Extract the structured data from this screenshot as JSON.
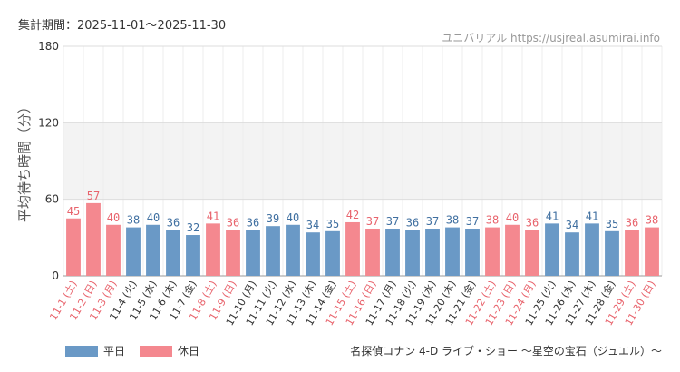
{
  "header": {
    "period": "集計期間：2025-11-01～2025-11-30"
  },
  "watermark": "ユニバリアル https://usjreal.asumirai.info",
  "chart_data": {
    "type": "bar",
    "title": "名探偵コナン 4-D ライブ・ショー ～星空の宝石（ジュエル）～",
    "ylabel": "平均待ち時間（分）",
    "xlabel": "",
    "ylim": [
      0,
      180
    ],
    "yticks": [
      0,
      60,
      120,
      180
    ],
    "band": [
      60,
      120
    ],
    "categories": [
      "11-1 (土)",
      "11-2 (日)",
      "11-3 (月)",
      "11-4 (火)",
      "11-5 (水)",
      "11-6 (木)",
      "11-7 (金)",
      "11-8 (土)",
      "11-9 (日)",
      "11-10 (月)",
      "11-11 (火)",
      "11-12 (水)",
      "11-13 (木)",
      "11-14 (金)",
      "11-15 (土)",
      "11-16 (日)",
      "11-17 (月)",
      "11-18 (火)",
      "11-19 (水)",
      "11-20 (木)",
      "11-21 (金)",
      "11-22 (土)",
      "11-23 (日)",
      "11-24 (月)",
      "11-25 (火)",
      "11-26 (水)",
      "11-27 (木)",
      "11-28 (金)",
      "11-29 (土)",
      "11-30 (日)"
    ],
    "values": [
      45,
      57,
      40,
      38,
      40,
      36,
      32,
      41,
      36,
      36,
      39,
      40,
      34,
      35,
      42,
      37,
      37,
      36,
      37,
      38,
      37,
      38,
      40,
      36,
      41,
      34,
      41,
      35,
      36,
      38
    ],
    "day_type": [
      "holiday",
      "holiday",
      "holiday",
      "weekday",
      "weekday",
      "weekday",
      "weekday",
      "holiday",
      "holiday",
      "weekday",
      "weekday",
      "weekday",
      "weekday",
      "weekday",
      "holiday",
      "holiday",
      "weekday",
      "weekday",
      "weekday",
      "weekday",
      "weekday",
      "holiday",
      "holiday",
      "holiday",
      "weekday",
      "weekday",
      "weekday",
      "weekday",
      "holiday",
      "holiday"
    ],
    "legend": [
      {
        "key": "weekday",
        "label": "平日",
        "color": "#6a99c6"
      },
      {
        "key": "holiday",
        "label": "休日",
        "color": "#f4888f"
      }
    ],
    "label_colors": {
      "weekday": "#3f6fa0",
      "holiday": "#e8636c"
    }
  }
}
